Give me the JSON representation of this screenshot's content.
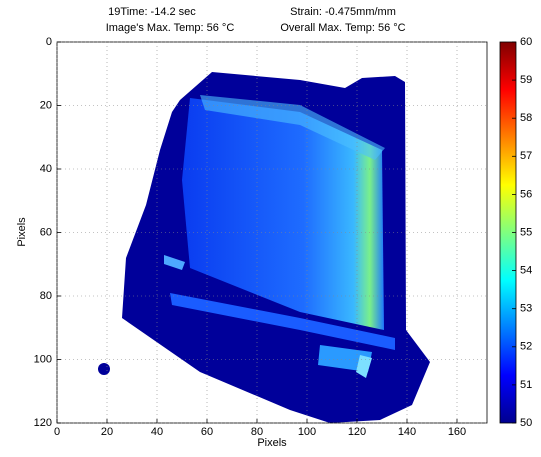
{
  "chart_data": {
    "type": "heatmap",
    "title_lines": [
      "19Time: -14.2 sec",
      "Image's Max. Temp: 56 °C",
      "Strain: -0.475mm/mm",
      "Overall Max. Temp: 56 °C"
    ],
    "xlabel": "Pixels",
    "ylabel": "Pixels",
    "xlim": [
      0,
      172
    ],
    "xticks": [
      0,
      20,
      40,
      60,
      80,
      100,
      120,
      140,
      160
    ],
    "ylim": [
      0,
      120
    ],
    "yticks": [
      0,
      20,
      40,
      60,
      80,
      100,
      120
    ],
    "y_reversed": true,
    "grid": true,
    "clim": [
      50,
      60
    ],
    "cticks": [
      50,
      51,
      52,
      53,
      54,
      55,
      56,
      57,
      58,
      59,
      60
    ]
  }
}
